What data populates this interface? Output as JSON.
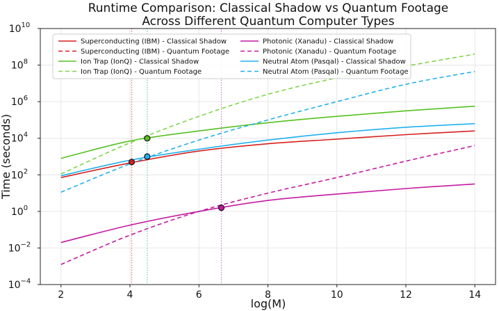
{
  "chart_data": {
    "type": "line",
    "title_line1": "Runtime Comparison: Classical Shadow vs Quantum Footage",
    "title_line2": "Across Different Quantum Computer Types",
    "xlabel": "log(M)",
    "ylabel": "Time (seconds)",
    "xlim": [
      1.4,
      14.6
    ],
    "ylim_log10": [
      -4,
      10
    ],
    "y_scale": "log",
    "x_ticks": [
      2,
      4,
      6,
      8,
      10,
      12,
      14
    ],
    "y_tick_exponents": [
      -4,
      -2,
      0,
      2,
      4,
      6,
      8,
      10
    ],
    "grid": true,
    "legend_position": "top-left",
    "series": [
      {
        "name": "Superconducting (IBM) - Classical Shadow",
        "color": "#d62020",
        "style": "solid",
        "x": [
          2,
          4,
          6,
          8,
          10,
          12,
          14
        ],
        "log10_y": [
          1.85,
          2.65,
          3.3,
          3.7,
          3.95,
          4.2,
          4.4
        ]
      },
      {
        "name": "Superconducting (IBM) - Quantum Footage",
        "color": "#d62020",
        "style": "dashed",
        "x": [],
        "log10_y": []
      },
      {
        "name": "Ion Trap (IonQ) - Classical Shadow",
        "color": "#55c020",
        "style": "solid",
        "x": [
          2,
          4,
          6,
          8,
          10,
          12,
          14
        ],
        "log10_y": [
          2.9,
          3.85,
          4.4,
          4.85,
          5.2,
          5.5,
          5.75
        ]
      },
      {
        "name": "Ion Trap (IonQ) - Quantum Footage",
        "color": "#7ed64a",
        "style": "dashed",
        "x": [
          2,
          4,
          6,
          8,
          10,
          12,
          14
        ],
        "log10_y": [
          2.05,
          3.75,
          5.2,
          6.4,
          7.3,
          7.95,
          8.6
        ]
      },
      {
        "name": "Photonic (Xanadu) - Classical Shadow",
        "color": "#c21aa0",
        "style": "solid",
        "x": [
          2,
          4,
          6,
          8,
          10,
          12,
          14
        ],
        "log10_y": [
          -1.7,
          -0.75,
          0.0,
          0.6,
          0.95,
          1.25,
          1.5
        ]
      },
      {
        "name": "Photonic (Xanadu) - Quantum Footage",
        "color": "#c21aa0",
        "style": "dashed",
        "x": [
          2,
          4,
          6,
          8,
          10,
          12,
          14
        ],
        "log10_y": [
          -2.9,
          -1.3,
          0.0,
          1.0,
          1.85,
          2.75,
          3.6
        ]
      },
      {
        "name": "Neutral Atom (Pasqal) - Classical Shadow",
        "color": "#20b0ee",
        "style": "solid",
        "x": [
          2,
          4,
          6,
          8,
          10,
          12,
          14
        ],
        "log10_y": [
          1.95,
          2.8,
          3.4,
          3.9,
          4.3,
          4.6,
          4.8
        ]
      },
      {
        "name": "Neutral Atom (Pasqal) - Quantum Footage",
        "color": "#20b0ee",
        "style": "dashed",
        "x": [
          2,
          4,
          6,
          8,
          10,
          12,
          14
        ],
        "log10_y": [
          1.05,
          2.6,
          3.9,
          5.0,
          6.0,
          6.95,
          7.65
        ]
      }
    ],
    "crossover_markers": [
      {
        "x": 4.05,
        "log10_y": 2.7,
        "color": "#d62020"
      },
      {
        "x": 4.5,
        "log10_y": 4.0,
        "color": "#55c020"
      },
      {
        "x": 4.5,
        "log10_y": 3.0,
        "color": "#20b0ee"
      },
      {
        "x": 6.65,
        "log10_y": 0.2,
        "color": "#c21aa0"
      }
    ],
    "vertical_lines": [
      {
        "x": 4.05,
        "color": "#e07070"
      },
      {
        "x": 4.5,
        "color": "#60d0a0"
      },
      {
        "x": 6.65,
        "color": "#d070e0"
      }
    ]
  }
}
